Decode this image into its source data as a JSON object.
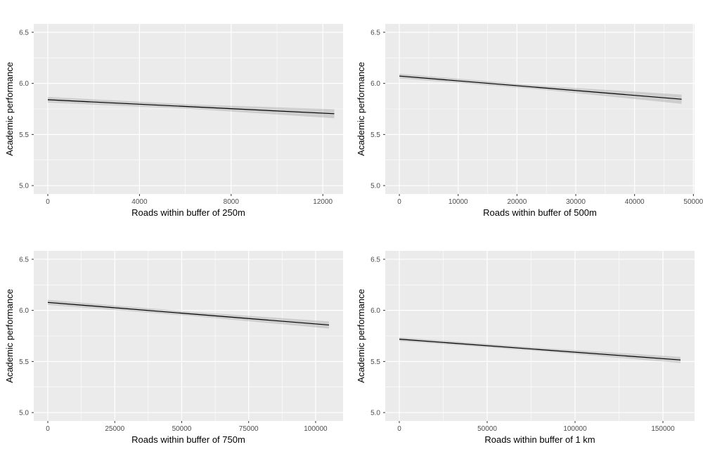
{
  "theme": {
    "background": "#ffffff",
    "panel_background": "#ebebeb",
    "grid_color": "#ffffff",
    "ribbon_color": "#808080",
    "ribbon_opacity": 0.28,
    "line_color": "#000000",
    "tick_mark_color": "#333333",
    "tick_label_color": "#4d4d4d",
    "axis_title_color": "#000000"
  },
  "chart_data": [
    {
      "type": "line",
      "title": "",
      "xlabel": "Roads within buffer of 250m",
      "ylabel": "Academic performance",
      "x_domain": [
        -613,
        12883
      ],
      "y_domain": [
        4.918,
        6.582
      ],
      "x_ticks": [
        {
          "v": 0,
          "label": "0"
        },
        {
          "v": 4000,
          "label": "4000"
        },
        {
          "v": 8000,
          "label": "8000"
        },
        {
          "v": 12000,
          "label": "12000"
        }
      ],
      "x_minor": [
        2000,
        6000,
        10000
      ],
      "y_ticks": [
        {
          "v": 5.0,
          "label": "5.0"
        },
        {
          "v": 5.5,
          "label": "5.5"
        },
        {
          "v": 6.0,
          "label": "6.0"
        },
        {
          "v": 6.5,
          "label": "6.5"
        }
      ],
      "y_minor": [
        5.25,
        5.75,
        6.25
      ],
      "legend": "none",
      "grid": true,
      "line": {
        "x": [
          0,
          12500
        ],
        "y": [
          5.84,
          5.703
        ]
      },
      "ribbon": {
        "x": [
          0,
          6250,
          12500
        ],
        "upper": [
          5.868,
          5.794,
          5.747
        ],
        "lower": [
          5.812,
          5.75,
          5.659
        ]
      }
    },
    {
      "type": "line",
      "title": "",
      "xlabel": "Roads within buffer of 500m",
      "ylabel": "Academic performance",
      "x_domain": [
        -2400,
        50200
      ],
      "y_domain": [
        4.918,
        6.582
      ],
      "x_ticks": [
        {
          "v": 0,
          "label": "0"
        },
        {
          "v": 10000,
          "label": "10000"
        },
        {
          "v": 20000,
          "label": "20000"
        },
        {
          "v": 30000,
          "label": "30000"
        },
        {
          "v": 40000,
          "label": "40000"
        },
        {
          "v": 50000,
          "label": "50000"
        }
      ],
      "x_minor": [
        5000,
        15000,
        25000,
        35000,
        45000
      ],
      "y_ticks": [
        {
          "v": 5.0,
          "label": "5.0"
        },
        {
          "v": 5.5,
          "label": "5.5"
        },
        {
          "v": 6.0,
          "label": "6.0"
        },
        {
          "v": 6.5,
          "label": "6.5"
        }
      ],
      "y_minor": [
        5.25,
        5.75,
        6.25
      ],
      "legend": "none",
      "grid": true,
      "line": {
        "x": [
          0,
          48000
        ],
        "y": [
          6.072,
          5.845
        ]
      },
      "ribbon": {
        "x": [
          0,
          24000,
          48000
        ],
        "upper": [
          6.095,
          5.977,
          5.89
        ],
        "lower": [
          6.049,
          5.94,
          5.8
        ]
      }
    },
    {
      "type": "line",
      "title": "",
      "xlabel": "Roads within buffer of 750m",
      "ylabel": "Academic performance",
      "x_domain": [
        -5250,
        110250
      ],
      "y_domain": [
        4.918,
        6.582
      ],
      "x_ticks": [
        {
          "v": 0,
          "label": "0"
        },
        {
          "v": 25000,
          "label": "25000"
        },
        {
          "v": 50000,
          "label": "50000"
        },
        {
          "v": 75000,
          "label": "75000"
        },
        {
          "v": 100000,
          "label": "100000"
        }
      ],
      "x_minor": [
        12500,
        37500,
        62500,
        87500
      ],
      "y_ticks": [
        {
          "v": 5.0,
          "label": "5.0"
        },
        {
          "v": 5.5,
          "label": "5.5"
        },
        {
          "v": 6.0,
          "label": "6.0"
        },
        {
          "v": 6.5,
          "label": "6.5"
        }
      ],
      "y_minor": [
        5.25,
        5.75,
        6.25
      ],
      "legend": "none",
      "grid": true,
      "line": {
        "x": [
          0,
          105000
        ],
        "y": [
          6.078,
          5.857
        ]
      },
      "ribbon": {
        "x": [
          0,
          52500,
          105000
        ],
        "upper": [
          6.103,
          5.988,
          5.892
        ],
        "lower": [
          6.053,
          5.948,
          5.822
        ]
      }
    },
    {
      "type": "line",
      "title": "",
      "xlabel": "Roads within buffer of 1 km",
      "ylabel": "Academic performance",
      "x_domain": [
        -8000,
        168000
      ],
      "y_domain": [
        4.918,
        6.582
      ],
      "x_ticks": [
        {
          "v": 0,
          "label": "0"
        },
        {
          "v": 50000,
          "label": "50000"
        },
        {
          "v": 100000,
          "label": "100000"
        },
        {
          "v": 150000,
          "label": "150000"
        }
      ],
      "x_minor": [
        25000,
        75000,
        125000
      ],
      "y_ticks": [
        {
          "v": 5.0,
          "label": "5.0"
        },
        {
          "v": 5.5,
          "label": "5.5"
        },
        {
          "v": 6.0,
          "label": "6.0"
        },
        {
          "v": 6.5,
          "label": "6.5"
        }
      ],
      "y_minor": [
        5.25,
        5.75,
        6.25
      ],
      "legend": "none",
      "grid": true,
      "line": {
        "x": [
          0,
          160000
        ],
        "y": [
          5.718,
          5.515
        ]
      },
      "ribbon": {
        "x": [
          0,
          80000,
          160000
        ],
        "upper": [
          5.736,
          5.633,
          5.545
        ],
        "lower": [
          5.7,
          5.601,
          5.485
        ]
      }
    }
  ]
}
